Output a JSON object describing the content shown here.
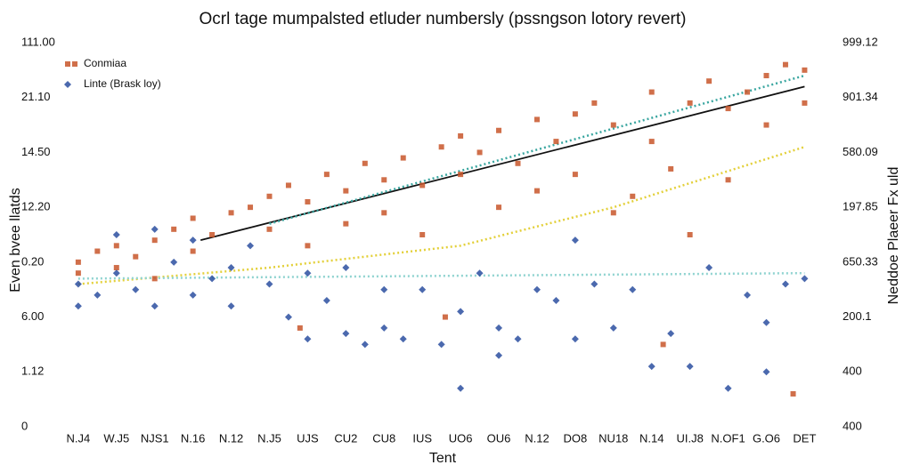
{
  "chart_data": {
    "type": "scatter",
    "title": "Ocrl tage mumpalsted etluder numbersly (pssngson lotory revert)",
    "xlabel": "Tent",
    "ylabel": "Even bvee llatds",
    "y2label": "Neddoe Plaeer Fx uld",
    "xlim": [
      -0.3,
      19.2
    ],
    "xticks": [
      {
        "value": 0,
        "label": "N.J4"
      },
      {
        "value": 1,
        "label": "W.J5"
      },
      {
        "value": 2,
        "label": "NJS1"
      },
      {
        "value": 3,
        "label": "N.16"
      },
      {
        "value": 4,
        "label": "N.12"
      },
      {
        "value": 5,
        "label": "N.J5"
      },
      {
        "value": 6,
        "label": "UJS"
      },
      {
        "value": 7,
        "label": "CU2"
      },
      {
        "value": 8,
        "label": "CU8"
      },
      {
        "value": 9,
        "label": "IUS"
      },
      {
        "value": 10,
        "label": "UO6"
      },
      {
        "value": 11,
        "label": "OU6"
      },
      {
        "value": 12,
        "label": "N.12"
      },
      {
        "value": 13,
        "label": "DO8"
      },
      {
        "value": 14,
        "label": "NU18"
      },
      {
        "value": 15,
        "label": "N.14"
      },
      {
        "value": 16,
        "label": "UI.J8"
      },
      {
        "value": 17,
        "label": "N.OF1"
      },
      {
        "value": 18,
        "label": "G.O6"
      },
      {
        "value": 19,
        "label": "DET"
      }
    ],
    "ylim": [
      0,
      7
    ],
    "yticks": [
      {
        "value": 0,
        "label": "0"
      },
      {
        "value": 1,
        "label": "1.12"
      },
      {
        "value": 2,
        "label": "6.00"
      },
      {
        "value": 3,
        "label": "0.20"
      },
      {
        "value": 4,
        "label": "12.20"
      },
      {
        "value": 5,
        "label": "14.50"
      },
      {
        "value": 6,
        "label": "21.10"
      },
      {
        "value": 7,
        "label": "111.00"
      }
    ],
    "y2lim": [
      0,
      7
    ],
    "y2ticks": [
      {
        "value": 0,
        "label": "400"
      },
      {
        "value": 1,
        "label": "400"
      },
      {
        "value": 2,
        "label": "200.1"
      },
      {
        "value": 3,
        "label": "650.33"
      },
      {
        "value": 4,
        "label": "197.85"
      },
      {
        "value": 5,
        "label": "580.09"
      },
      {
        "value": 6,
        "label": "901.34"
      },
      {
        "value": 7,
        "label": "999.12"
      }
    ],
    "series": [
      {
        "name": "Conmiaa",
        "color": "#c8562a",
        "marker": "square",
        "x": [
          0,
          0,
          0.5,
          1,
          1,
          1.5,
          2,
          2,
          2.5,
          3,
          3,
          3.5,
          4,
          4.5,
          5,
          5,
          5.5,
          6,
          6,
          6.5,
          7,
          7,
          7.5,
          8,
          8,
          8.5,
          9,
          9,
          9.5,
          10,
          10,
          10.5,
          11,
          11,
          11.5,
          12,
          12,
          12.5,
          13,
          13,
          13.5,
          14,
          14,
          14.5,
          15,
          15,
          15.5,
          16,
          16,
          16.5,
          17,
          17,
          17.5,
          18,
          18,
          18.5,
          19,
          19,
          18.7,
          15.3,
          9.6,
          5.8
        ],
        "y": [
          3.0,
          2.8,
          3.2,
          2.9,
          3.3,
          3.1,
          3.4,
          2.7,
          3.6,
          3.2,
          3.8,
          3.5,
          3.9,
          4.0,
          4.2,
          3.6,
          4.4,
          4.1,
          3.3,
          4.6,
          4.3,
          3.7,
          4.8,
          4.5,
          3.9,
          4.9,
          4.4,
          3.5,
          5.1,
          5.3,
          4.6,
          5.0,
          5.4,
          4.0,
          4.8,
          5.6,
          4.3,
          5.2,
          5.7,
          4.6,
          5.9,
          5.5,
          3.9,
          4.2,
          6.1,
          5.2,
          4.7,
          5.9,
          3.5,
          6.3,
          5.8,
          4.5,
          6.1,
          6.4,
          5.5,
          6.6,
          6.5,
          5.9,
          0.6,
          1.5,
          2.0,
          1.8
        ]
      },
      {
        "name": "Linte (Brask loy)",
        "color": "#2b4fa0",
        "marker": "diamond",
        "x": [
          0,
          0,
          0.5,
          1,
          1,
          1.5,
          2,
          2,
          2.5,
          3,
          3,
          3.5,
          4,
          4,
          4.5,
          5,
          5.5,
          6,
          6,
          6.5,
          7,
          7,
          7.5,
          8,
          8,
          8.5,
          9,
          9.5,
          10,
          10.5,
          11,
          11,
          11.5,
          12,
          12.5,
          13,
          13,
          13.5,
          14,
          14.5,
          15,
          15.5,
          16,
          16.5,
          17,
          17.5,
          18,
          18,
          18.5,
          19,
          10
        ],
        "y": [
          2.2,
          2.6,
          2.4,
          2.8,
          3.5,
          2.5,
          3.6,
          2.2,
          3.0,
          3.4,
          2.4,
          2.7,
          2.9,
          2.2,
          3.3,
          2.6,
          2.0,
          2.8,
          1.6,
          2.3,
          1.7,
          2.9,
          1.5,
          2.5,
          1.8,
          1.6,
          2.5,
          1.5,
          2.1,
          2.8,
          1.3,
          1.8,
          1.6,
          2.5,
          2.3,
          3.4,
          1.6,
          2.6,
          1.8,
          2.5,
          1.1,
          1.7,
          1.1,
          2.9,
          0.7,
          2.4,
          1.9,
          1.0,
          2.6,
          2.7,
          0.7
        ]
      }
    ],
    "trend_lines": [
      {
        "color": "#111111",
        "dash": false,
        "x": [
          3.2,
          19
        ],
        "y": [
          3.4,
          6.2
        ]
      },
      {
        "color": "#3aa6a0",
        "dash": true,
        "x": [
          5,
          19
        ],
        "y": [
          3.7,
          6.4
        ]
      },
      {
        "color": "#e3d03a",
        "dash": true,
        "x": [
          0,
          5,
          10,
          14,
          19
        ],
        "y": [
          2.6,
          2.9,
          3.3,
          4.0,
          5.1
        ]
      },
      {
        "color": "#8fd3d0",
        "dash": true,
        "x": [
          0,
          19
        ],
        "y": [
          2.7,
          2.8
        ]
      }
    ]
  }
}
